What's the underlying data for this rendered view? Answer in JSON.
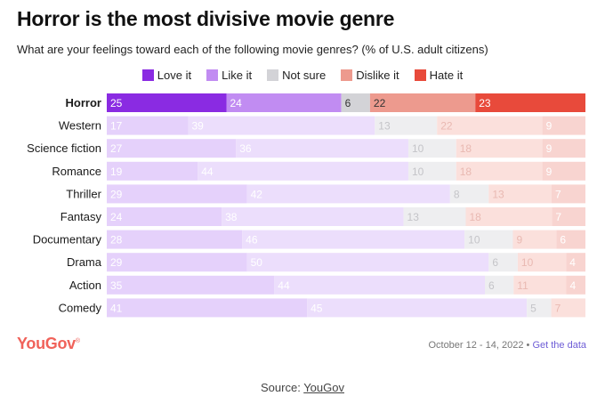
{
  "header": {
    "title": "Horror is the most divisive movie genre",
    "subtitle": "What are your feelings toward each of the following movie genres? (% of U.S. adult citizens)"
  },
  "chart_data": {
    "type": "bar",
    "stacked": true,
    "orientation": "horizontal",
    "title": "Horror is the most divisive movie genre",
    "subtitle": "What are your feelings toward each of the following movie genres? (% of U.S. adult citizens)",
    "categories": [
      "Horror",
      "Western",
      "Science fiction",
      "Romance",
      "Thriller",
      "Fantasy",
      "Documentary",
      "Drama",
      "Action",
      "Comedy"
    ],
    "highlighted_category": "Horror",
    "series": [
      {
        "name": "Love it",
        "color": "#8a2be2",
        "values": [
          25,
          17,
          27,
          19,
          29,
          24,
          28,
          29,
          35,
          41
        ]
      },
      {
        "name": "Like it",
        "color": "#c18cf2",
        "values": [
          24,
          39,
          36,
          44,
          42,
          38,
          46,
          50,
          44,
          45
        ]
      },
      {
        "name": "Not sure",
        "color": "#d3d3d7",
        "values": [
          6,
          13,
          10,
          10,
          8,
          13,
          10,
          6,
          6,
          5
        ]
      },
      {
        "name": "Dislike it",
        "color": "#ed9a8e",
        "values": [
          22,
          22,
          18,
          18,
          13,
          18,
          9,
          10,
          11,
          7
        ]
      },
      {
        "name": "Hate it",
        "color": "#e84a3b",
        "values": [
          23,
          9,
          9,
          9,
          7,
          7,
          6,
          4,
          4,
          null
        ]
      }
    ],
    "legend_position": "top-center",
    "grid": false
  },
  "legend": [
    {
      "label": "Love it",
      "color": "#8a2be2"
    },
    {
      "label": "Like it",
      "color": "#c18cf2"
    },
    {
      "label": "Not sure",
      "color": "#d3d3d7"
    },
    {
      "label": "Dislike it",
      "color": "#ed9a8e"
    },
    {
      "label": "Hate it",
      "color": "#e84a3b"
    }
  ],
  "footer": {
    "brand": "YouGov",
    "date": "October 12 - 14, 2022",
    "separator": "•",
    "link": "Get the data",
    "source_prefix": "Source:",
    "source_link": "YouGov"
  }
}
